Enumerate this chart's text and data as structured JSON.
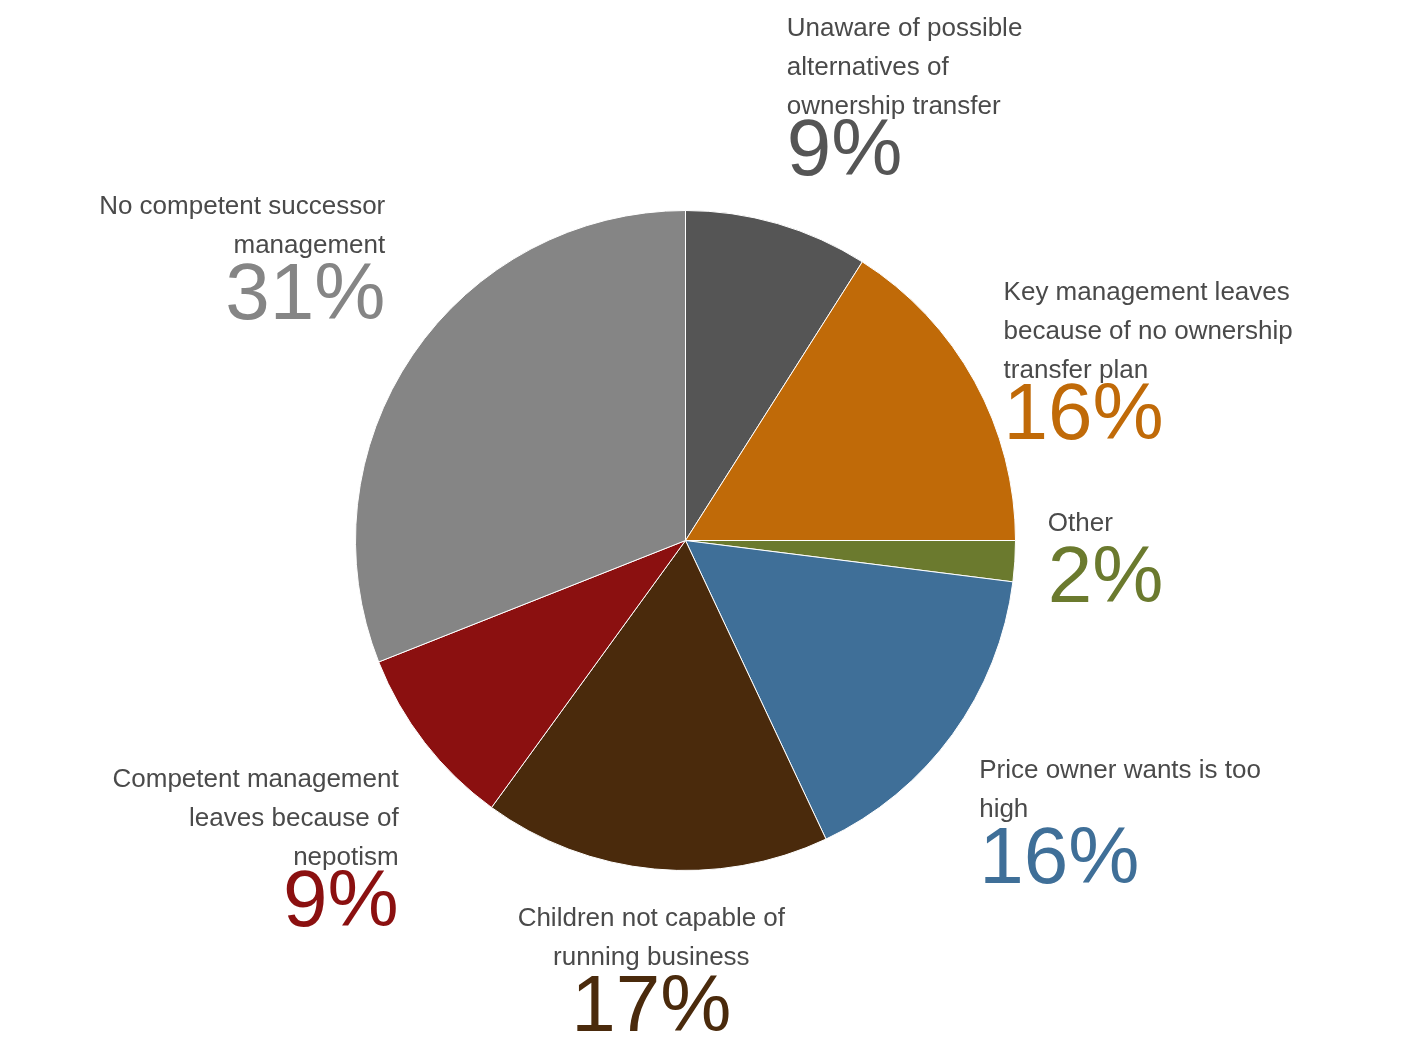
{
  "chart_data": {
    "type": "pie",
    "categories": [
      "Unaware of possible alternatives of ownership transfer",
      "Key management leaves because of no ownership transfer plan",
      "Other",
      "Price owner wants is too high",
      "Children not capable of running business",
      "Competent management leaves because of nepotism",
      "No competent successor management"
    ],
    "values": [
      9,
      16,
      2,
      16,
      17,
      9,
      31
    ],
    "value_labels": [
      "9%",
      "16%",
      "2%",
      "16%",
      "17%",
      "9%",
      "31%"
    ],
    "colors": [
      "#555555",
      "#c06a08",
      "#6b7a2e",
      "#3f6f98",
      "#4a2a0c",
      "#8b1010",
      "#858585"
    ]
  }
}
